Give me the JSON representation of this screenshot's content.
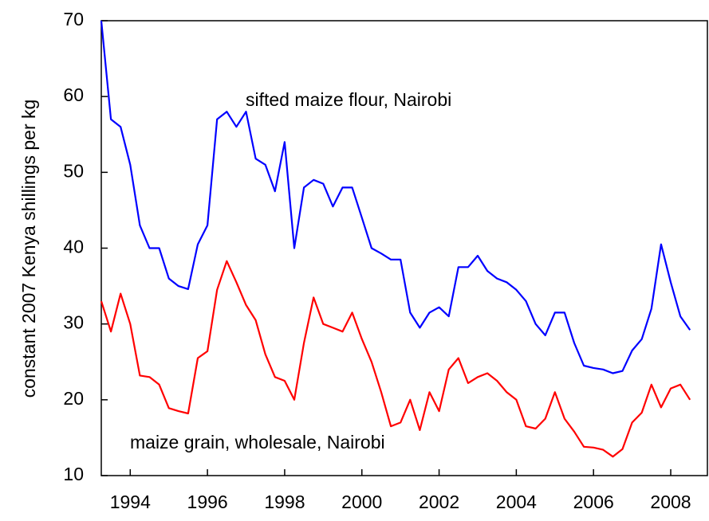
{
  "chart_data": {
    "type": "line",
    "y_label": "constant 2007 Kenya shillings per kg",
    "annotations": [
      "sifted maize flour, Nairobi",
      "maize grain, wholesale, Nairobi"
    ],
    "x": [
      1993.25,
      1993.5,
      1993.75,
      1994,
      1994.25,
      1994.5,
      1994.75,
      1995,
      1995.25,
      1995.5,
      1995.75,
      1996,
      1996.25,
      1996.5,
      1996.75,
      1997,
      1997.25,
      1997.5,
      1997.75,
      1998,
      1998.25,
      1998.5,
      1998.75,
      1999,
      1999.25,
      1999.5,
      1999.75,
      2000,
      2000.25,
      2000.5,
      2000.75,
      2001,
      2001.25,
      2001.5,
      2001.75,
      2002,
      2002.25,
      2002.5,
      2002.75,
      2003,
      2003.25,
      2003.5,
      2003.75,
      2004,
      2004.25,
      2004.5,
      2004.75,
      2005,
      2005.25,
      2005.5,
      2005.75,
      2006,
      2006.25,
      2006.5,
      2006.75,
      2007,
      2007.25,
      2007.5,
      2007.75,
      2008,
      2008.25,
      2008.5
    ],
    "series": [
      {
        "name": "sifted maize flour, Nairobi",
        "color": "#0000ff",
        "values": [
          70,
          57,
          56,
          51,
          43,
          40,
          40,
          36,
          35,
          34.6,
          40.5,
          43,
          57,
          58,
          56,
          58,
          51.8,
          51,
          47.5,
          54,
          40,
          48,
          49,
          48.5,
          45.5,
          48,
          48,
          44,
          40,
          39.3,
          38.5,
          38.5,
          31.5,
          29.5,
          31.5,
          32.2,
          31,
          37.5,
          37.5,
          39,
          37,
          36,
          35.5,
          34.5,
          33,
          30,
          28.5,
          31.5,
          31.5,
          27.5,
          24.5,
          24.2,
          24,
          23.5,
          23.8,
          26.5,
          28,
          32,
          40.5,
          35.5,
          31,
          29.2
        ]
      },
      {
        "name": "maize grain, wholesale, Nairobi",
        "color": "#ff0000",
        "values": [
          33,
          29,
          34,
          30,
          23.2,
          23,
          22,
          18.9,
          18.5,
          18.2,
          25.5,
          26.4,
          34.5,
          38.3,
          35.5,
          32.5,
          30.5,
          26,
          23,
          22.5,
          20,
          27.5,
          33.5,
          30,
          29.5,
          29,
          31.5,
          28,
          25,
          21,
          16.5,
          17,
          20,
          16,
          21,
          18.5,
          24,
          25.5,
          22.2,
          23,
          23.5,
          22.5,
          21,
          20,
          16.5,
          16.2,
          17.5,
          21,
          17.5,
          15.8,
          13.8,
          13.7,
          13.4,
          12.5,
          13.5,
          17,
          18.3,
          22,
          19,
          21.5,
          22,
          20
        ]
      }
    ],
    "xlim": [
      1993.25,
      2008.95
    ],
    "xticks": [
      1994,
      1996,
      1998,
      2000,
      2002,
      2004,
      2006,
      2008
    ],
    "ylim": [
      10,
      70
    ],
    "yticks": [
      10,
      20,
      30,
      40,
      50,
      60,
      70
    ],
    "grid": false
  }
}
